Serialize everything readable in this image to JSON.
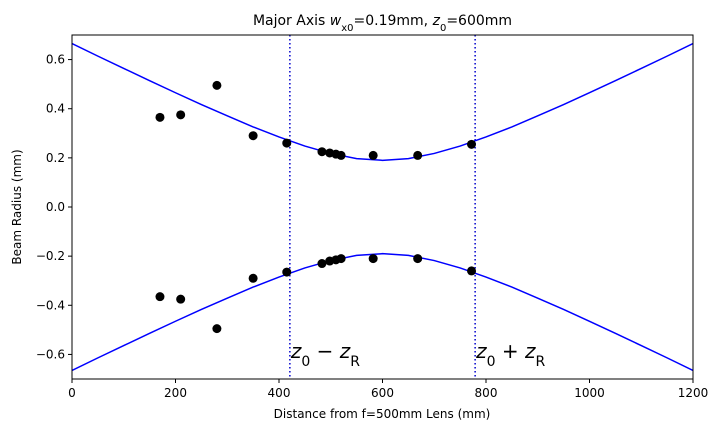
{
  "chart_data": {
    "type": "line",
    "title": [
      {
        "text": "Major Axis "
      },
      {
        "text": "w",
        "style": "italic"
      },
      {
        "text": "x0",
        "style": "sub"
      },
      {
        "text": "=0.19mm, "
      },
      {
        "text": "z",
        "style": "italic"
      },
      {
        "text": "0",
        "style": "sub"
      },
      {
        "text": "=600mm"
      }
    ],
    "xlabel": "Distance from f=500mm Lens (mm)",
    "ylabel": "Beam Radius (mm)",
    "xlim": [
      0,
      1200
    ],
    "ylim": [
      -0.7,
      0.7
    ],
    "xticks": [
      0,
      200,
      400,
      600,
      800,
      1000,
      1200
    ],
    "yticks": [
      {
        "value": -0.6,
        "label": "−0.6"
      },
      {
        "value": -0.4,
        "label": "−0.4"
      },
      {
        "value": -0.2,
        "label": "−0.2"
      },
      {
        "value": 0,
        "label": "0.0"
      },
      0.2,
      0.4,
      0.6
    ],
    "series": [
      {
        "type": "line",
        "color": "#0000ff",
        "x": [
          0,
          50,
          100,
          150,
          200,
          250,
          300,
          350,
          400,
          450,
          500,
          550,
          600,
          650,
          700,
          750,
          800,
          850,
          900,
          950,
          1000,
          1050,
          1100,
          1150,
          1200
        ],
        "values": [
          0.665,
          0.614,
          0.564,
          0.514,
          0.465,
          0.417,
          0.371,
          0.326,
          0.285,
          0.248,
          0.218,
          0.197,
          0.19,
          0.197,
          0.218,
          0.248,
          0.285,
          0.326,
          0.371,
          0.417,
          0.465,
          0.514,
          0.564,
          0.614,
          0.665
        ]
      },
      {
        "type": "line",
        "color": "#0000ff",
        "x": [
          0,
          50,
          100,
          150,
          200,
          250,
          300,
          350,
          400,
          450,
          500,
          550,
          600,
          650,
          700,
          750,
          800,
          850,
          900,
          950,
          1000,
          1050,
          1100,
          1150,
          1200
        ],
        "values": [
          -0.665,
          -0.614,
          -0.564,
          -0.514,
          -0.465,
          -0.417,
          -0.371,
          -0.326,
          -0.285,
          -0.248,
          -0.218,
          -0.197,
          -0.19,
          -0.197,
          -0.218,
          -0.248,
          -0.285,
          -0.326,
          -0.371,
          -0.417,
          -0.465,
          -0.514,
          -0.564,
          -0.614,
          -0.665
        ]
      },
      {
        "type": "scatter",
        "color": "#000000",
        "x": [
          170,
          210,
          280,
          350,
          415,
          483,
          498,
          510,
          520,
          582,
          668,
          772
        ],
        "values": [
          0.365,
          0.375,
          0.495,
          0.29,
          0.26,
          0.225,
          0.22,
          0.215,
          0.21,
          0.21,
          0.21,
          0.255
        ]
      },
      {
        "type": "scatter",
        "color": "#000000",
        "x": [
          170,
          210,
          280,
          350,
          415,
          483,
          498,
          510,
          520,
          582,
          668,
          772
        ],
        "values": [
          -0.365,
          -0.375,
          -0.495,
          -0.29,
          -0.265,
          -0.23,
          -0.22,
          -0.215,
          -0.21,
          -0.21,
          -0.21,
          -0.26
        ]
      }
    ],
    "vlines": [
      {
        "x": 421,
        "color": "#0000cc",
        "label": [
          {
            "text": "z",
            "style": "italic"
          },
          {
            "text": "0",
            "style": "sub"
          },
          {
            "text": " − "
          },
          {
            "text": "z",
            "style": "italic"
          },
          {
            "text": "R",
            "style": "sub"
          }
        ]
      },
      {
        "x": 779,
        "color": "#0000cc",
        "label": [
          {
            "text": "z",
            "style": "italic"
          },
          {
            "text": "0",
            "style": "sub"
          },
          {
            "text": " + "
          },
          {
            "text": "z",
            "style": "italic"
          },
          {
            "text": "R",
            "style": "sub"
          }
        ]
      }
    ]
  }
}
